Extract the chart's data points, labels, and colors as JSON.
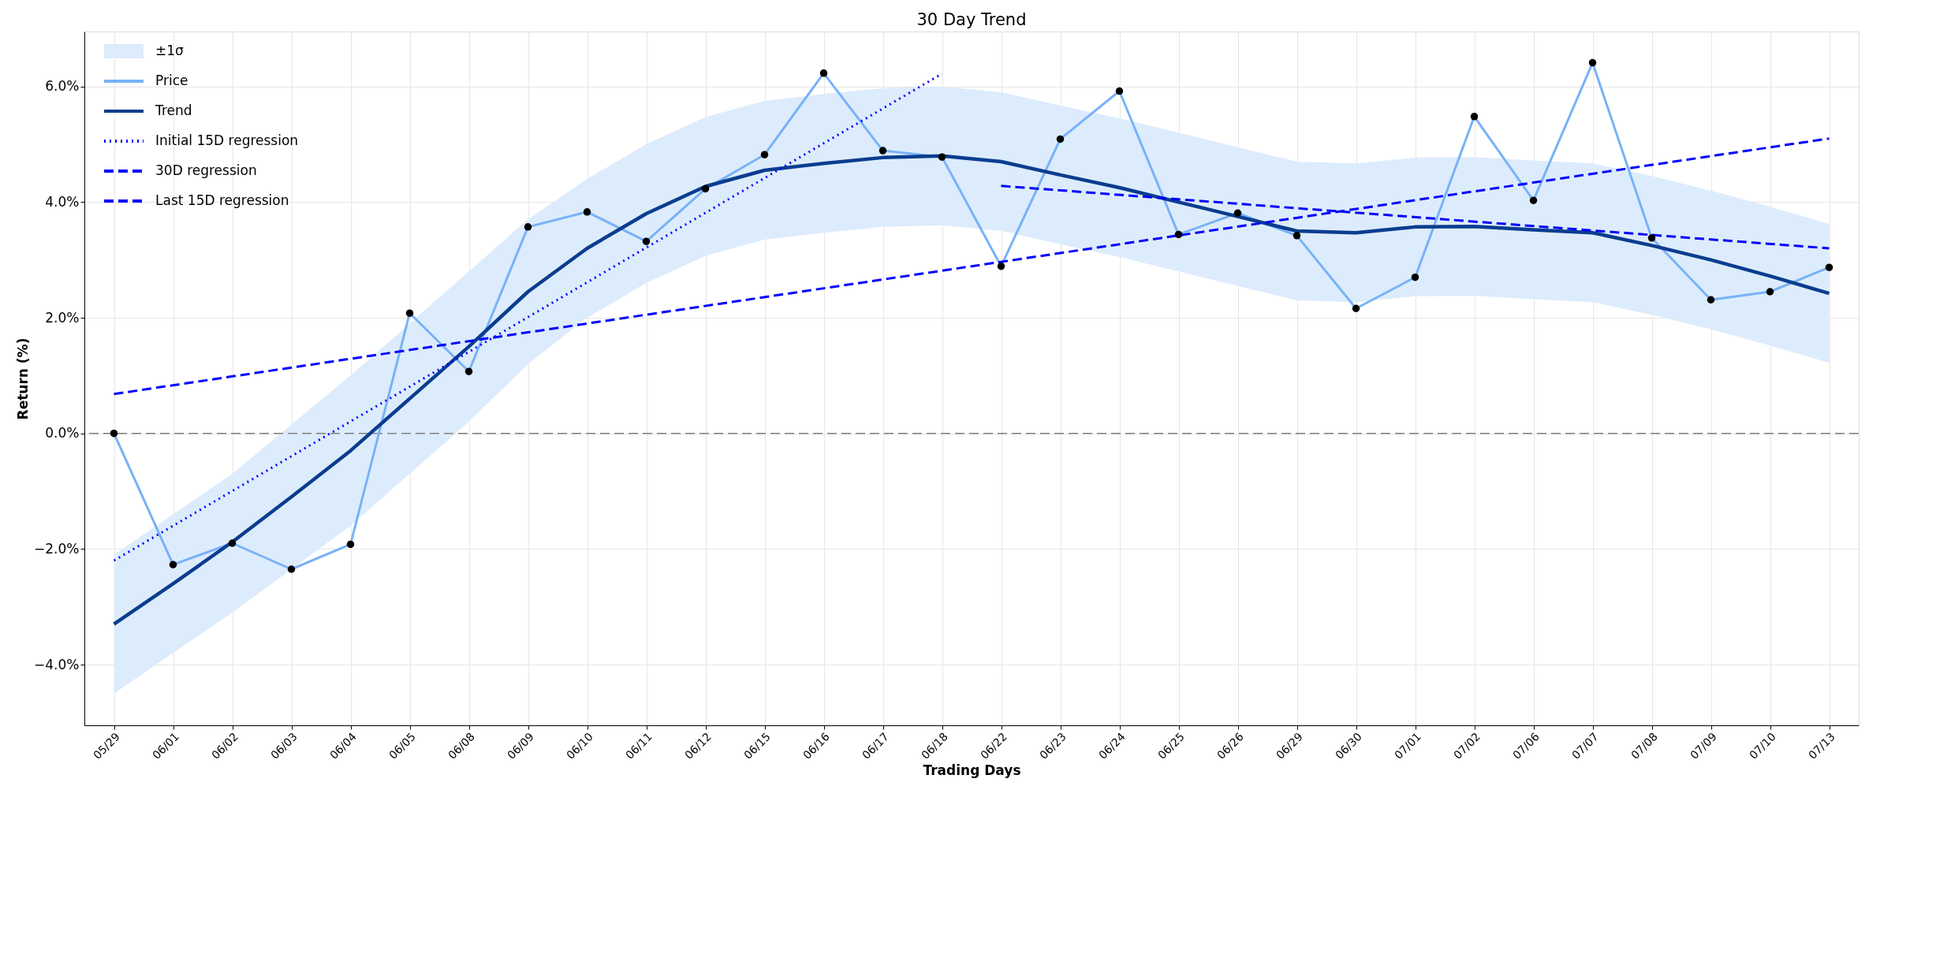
{
  "chart_data": {
    "type": "line",
    "title": "30 Day Trend",
    "xlabel": "Trading Days",
    "ylabel": "Return (%)",
    "categories": [
      "05/29",
      "06/01",
      "06/02",
      "06/03",
      "06/04",
      "06/05",
      "06/08",
      "06/09",
      "06/10",
      "06/11",
      "06/12",
      "06/15",
      "06/16",
      "06/17",
      "06/18",
      "06/22",
      "06/23",
      "06/24",
      "06/25",
      "06/26",
      "06/29",
      "06/30",
      "07/01",
      "07/02",
      "07/06",
      "07/07",
      "07/08",
      "07/09",
      "07/10",
      "07/13"
    ],
    "series": [
      {
        "name": "Price",
        "color": "#78b2f7",
        "line_style": "solid",
        "values": [
          0,
          -2.27,
          -1.9,
          -2.35,
          -1.92,
          2.08,
          1.07,
          3.57,
          3.83,
          3.32,
          4.23,
          4.82,
          6.23,
          4.89,
          4.78,
          2.89,
          5.09,
          5.92,
          3.44,
          3.81,
          3.42,
          2.16,
          2.7,
          5.48,
          4.03,
          6.41,
          3.38,
          2.31,
          2.45,
          2.87
        ]
      },
      {
        "name": "Trend",
        "color": "#0a3d8f",
        "line_style": "solid",
        "values": [
          -3.3,
          -2.6,
          -1.88,
          -1.1,
          -0.3,
          0.6,
          1.5,
          2.45,
          3.2,
          3.8,
          4.27,
          4.55,
          4.67,
          4.77,
          4.8,
          4.7,
          4.47,
          4.25,
          4.0,
          3.75,
          3.5,
          3.47,
          3.57,
          3.58,
          3.52,
          3.47,
          3.25,
          3.0,
          2.72,
          2.42
        ],
        "lower": [
          -4.5,
          -3.8,
          -3.1,
          -2.35,
          -1.6,
          -0.7,
          0.2,
          1.2,
          2.0,
          2.6,
          3.07,
          3.35,
          3.47,
          3.57,
          3.6,
          3.5,
          3.27,
          3.05,
          2.8,
          2.55,
          2.3,
          2.27,
          2.37,
          2.38,
          2.32,
          2.27,
          2.05,
          1.8,
          1.52,
          1.22
        ],
        "upper": [
          -2.1,
          -1.4,
          -0.7,
          0.15,
          1.0,
          1.9,
          2.8,
          3.7,
          4.4,
          5.0,
          5.47,
          5.75,
          5.87,
          5.97,
          6.0,
          5.9,
          5.67,
          5.45,
          5.2,
          4.95,
          4.7,
          4.67,
          4.77,
          4.78,
          4.72,
          4.67,
          4.45,
          4.2,
          3.92,
          3.62
        ]
      },
      {
        "name": "Initial 15D regression",
        "color": "#0000ff",
        "line_style": "dotted",
        "x": [
          "05/29",
          "06/18"
        ],
        "values": [
          -2.2,
          6.22
        ]
      },
      {
        "name": "30D regression",
        "color": "#0000fe",
        "line_style": "dashed",
        "x": [
          "05/29",
          "07/13"
        ],
        "values": [
          0.68,
          5.1
        ]
      },
      {
        "name": "Last 15D regression",
        "color": "#0101ff",
        "line_style": "dashed",
        "x": [
          "06/22",
          "07/13"
        ],
        "values": [
          4.28,
          3.2
        ]
      },
      {
        "type": "scatter",
        "color": "#000000",
        "marker": "circle",
        "values": [
          0,
          -2.27,
          -1.9,
          -2.35,
          -1.92,
          2.08,
          1.07,
          3.57,
          3.83,
          3.32,
          4.23,
          4.82,
          6.23,
          4.89,
          4.78,
          2.89,
          5.09,
          5.92,
          3.44,
          3.81,
          3.42,
          2.16,
          2.7,
          5.48,
          4.03,
          6.41,
          3.38,
          2.31,
          2.45,
          2.87
        ]
      }
    ],
    "annotations": [
      "±1σ"
    ],
    "ylim": [
      -5.05,
      6.95
    ],
    "yticks": [
      {
        "value": -4,
        "label": "−4.0%"
      },
      {
        "value": -2,
        "label": "−2.0%"
      },
      {
        "value": 0,
        "label": "0.0%"
      },
      {
        "value": 2,
        "label": "2.0%"
      },
      {
        "value": 4,
        "label": "4.0%"
      },
      {
        "value": 6,
        "label": "6.0%"
      }
    ],
    "ref_lines": [
      {
        "axis": "y",
        "value": 0,
        "color": "#808080",
        "line_style": "dashed"
      }
    ],
    "grid": true,
    "legend": "top left"
  }
}
